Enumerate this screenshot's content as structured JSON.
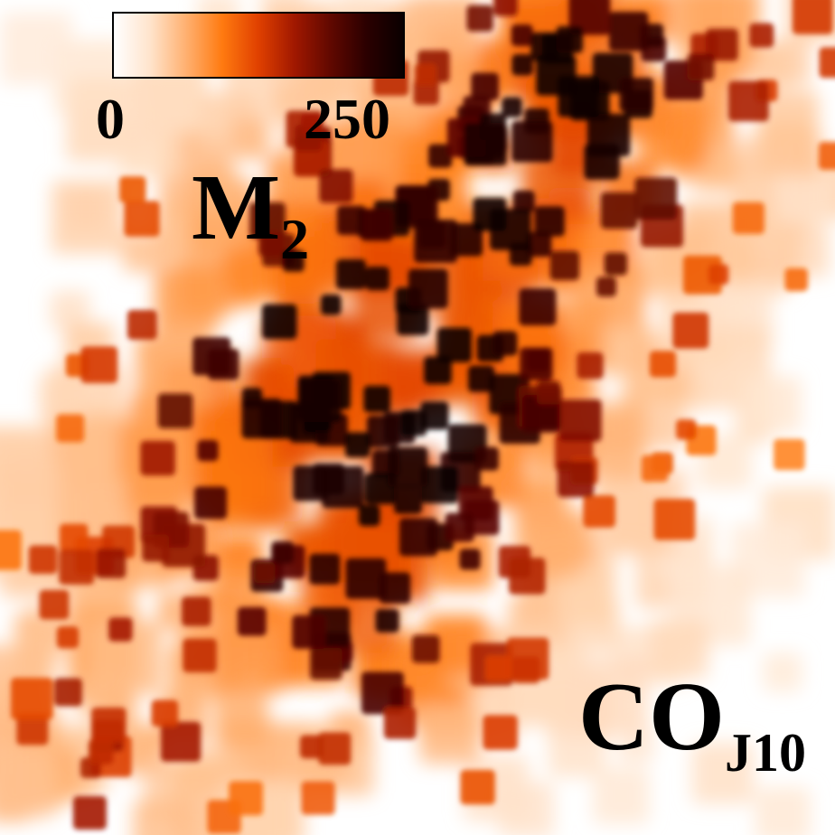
{
  "chart_data": {
    "type": "heatmap",
    "title": "",
    "moment": {
      "base": "M",
      "index": "2"
    },
    "tracer": {
      "base": "CO",
      "subscript": "J10"
    },
    "colorbar": {
      "colormap": [
        "#ffffff",
        "#ffe4cc",
        "#ffb070",
        "#ff7a10",
        "#e04000",
        "#a01800",
        "#600800",
        "#2a0000",
        "#0a0000"
      ],
      "vmin": 0,
      "vmax": 320,
      "ticks": [
        0,
        250
      ]
    },
    "background_color": "#ffffff",
    "grid": false
  }
}
